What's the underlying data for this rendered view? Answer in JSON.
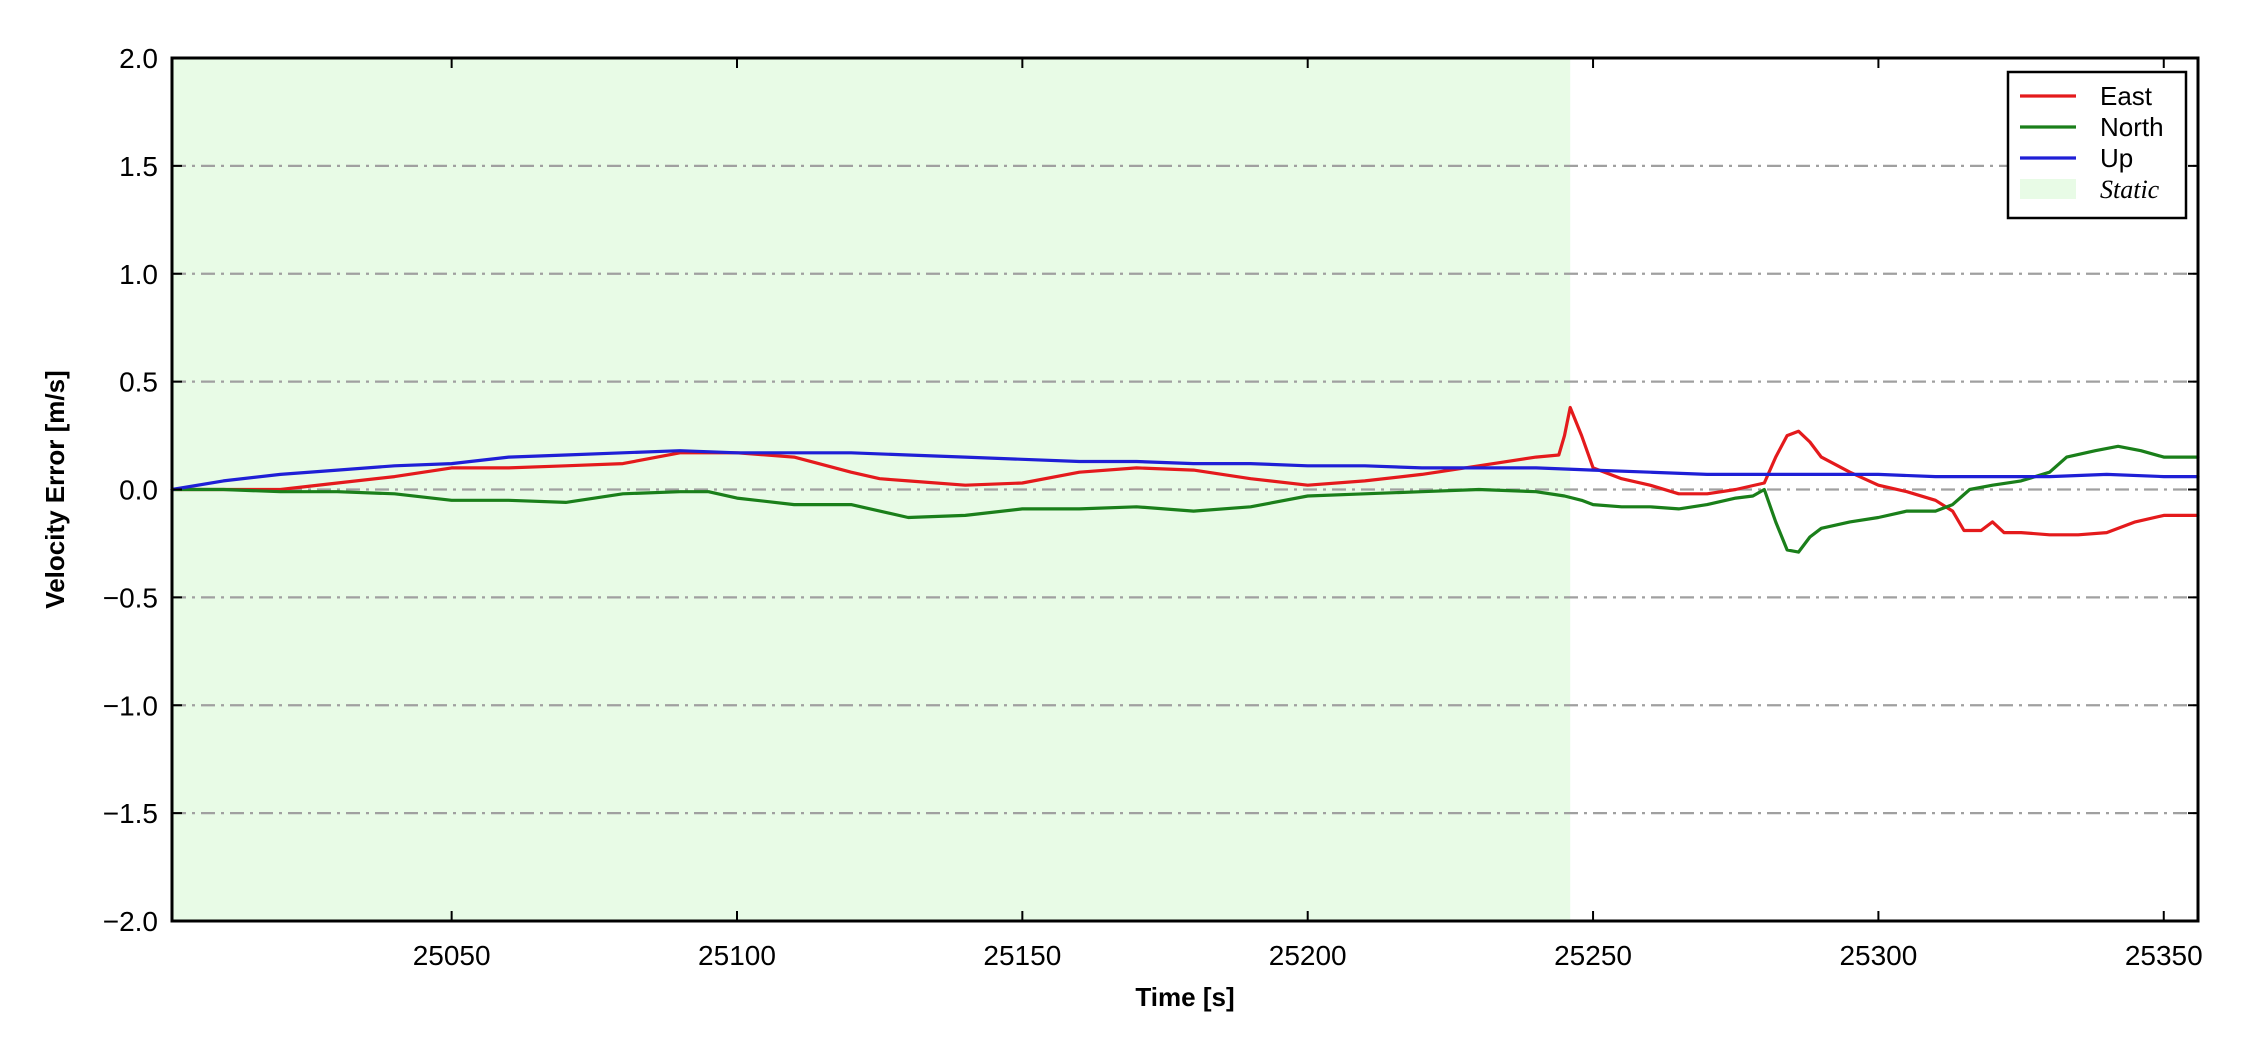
{
  "chart_data": {
    "type": "line",
    "title": "",
    "xlabel": "Time [s]",
    "ylabel": "Velocity Error [m/s]",
    "xlim": [
      25001,
      25356
    ],
    "ylim": [
      -2.0,
      2.0
    ],
    "x_ticks": [
      25050,
      25100,
      25150,
      25200,
      25250,
      25300,
      25350
    ],
    "x_tick_labels": [
      "25050",
      "25100",
      "25150",
      "25200",
      "25250",
      "25300",
      "25350"
    ],
    "y_ticks": [
      -2.0,
      -1.5,
      -1.0,
      -0.5,
      0.0,
      0.5,
      1.0,
      1.5,
      2.0
    ],
    "y_tick_labels": [
      "−2.0",
      "−1.5",
      "−1.0",
      "−0.5",
      "0.0",
      "0.5",
      "1.0",
      "1.5",
      "2.0"
    ],
    "grid": {
      "y": true,
      "x": false,
      "style": "dash-dot",
      "color": "#a0a0a0"
    },
    "legend_position": "top-right",
    "shaded_region": {
      "label": "Static",
      "x": [
        25001,
        25246
      ],
      "color": "#e8fbe6"
    },
    "series": [
      {
        "name": "East",
        "color": "#e41a1c",
        "x": [
          25001,
          25010,
          25020,
          25030,
          25040,
          25050,
          25060,
          25070,
          25080,
          25090,
          25100,
          25110,
          25120,
          25125,
          25130,
          25140,
          25150,
          25160,
          25170,
          25180,
          25190,
          25200,
          25210,
          25220,
          25230,
          25240,
          25244,
          25245,
          25246,
          25248,
          25250,
          25255,
          25260,
          25265,
          25270,
          25275,
          25280,
          25282,
          25284,
          25286,
          25288,
          25290,
          25295,
          25300,
          25305,
          25310,
          25313,
          25315,
          25318,
          25320,
          25322,
          25325,
          25330,
          25335,
          25340,
          25345,
          25350,
          25356
        ],
        "y": [
          0.0,
          0.0,
          0.0,
          0.03,
          0.06,
          0.1,
          0.1,
          0.11,
          0.12,
          0.17,
          0.17,
          0.15,
          0.08,
          0.05,
          0.04,
          0.02,
          0.03,
          0.08,
          0.1,
          0.09,
          0.05,
          0.02,
          0.04,
          0.07,
          0.11,
          0.15,
          0.16,
          0.25,
          0.38,
          0.25,
          0.1,
          0.05,
          0.02,
          -0.02,
          -0.02,
          0.0,
          0.03,
          0.15,
          0.25,
          0.27,
          0.22,
          0.15,
          0.08,
          0.02,
          -0.01,
          -0.05,
          -0.1,
          -0.19,
          -0.19,
          -0.15,
          -0.2,
          -0.2,
          -0.21,
          -0.21,
          -0.2,
          -0.15,
          -0.12,
          -0.12
        ]
      },
      {
        "name": "North",
        "color": "#1a7f1a",
        "x": [
          25001,
          25010,
          25020,
          25030,
          25040,
          25050,
          25060,
          25070,
          25080,
          25090,
          25095,
          25100,
          25110,
          25120,
          25130,
          25140,
          25150,
          25160,
          25170,
          25180,
          25190,
          25200,
          25210,
          25220,
          25230,
          25240,
          25245,
          25248,
          25250,
          25255,
          25260,
          25265,
          25270,
          25275,
          25278,
          25280,
          25282,
          25284,
          25286,
          25288,
          25290,
          25295,
          25300,
          25305,
          25310,
          25313,
          25316,
          25320,
          25325,
          25330,
          25333,
          25338,
          25342,
          25346,
          25350,
          25356
        ],
        "y": [
          0.0,
          0.0,
          -0.01,
          -0.01,
          -0.02,
          -0.05,
          -0.05,
          -0.06,
          -0.02,
          -0.01,
          -0.01,
          -0.04,
          -0.07,
          -0.07,
          -0.13,
          -0.12,
          -0.09,
          -0.09,
          -0.08,
          -0.1,
          -0.08,
          -0.03,
          -0.02,
          -0.01,
          0.0,
          -0.01,
          -0.03,
          -0.05,
          -0.07,
          -0.08,
          -0.08,
          -0.09,
          -0.07,
          -0.04,
          -0.03,
          0.0,
          -0.15,
          -0.28,
          -0.29,
          -0.22,
          -0.18,
          -0.15,
          -0.13,
          -0.1,
          -0.1,
          -0.07,
          0.0,
          0.02,
          0.04,
          0.08,
          0.15,
          0.18,
          0.2,
          0.18,
          0.15,
          0.15
        ]
      },
      {
        "name": "Up",
        "color": "#1f1fd6",
        "x": [
          25001,
          25010,
          25020,
          25030,
          25040,
          25050,
          25060,
          25070,
          25080,
          25090,
          25100,
          25110,
          25120,
          25130,
          25140,
          25150,
          25160,
          25170,
          25180,
          25190,
          25200,
          25210,
          25220,
          25230,
          25240,
          25250,
          25260,
          25270,
          25280,
          25290,
          25300,
          25310,
          25320,
          25330,
          25340,
          25350,
          25356
        ],
        "y": [
          0.0,
          0.04,
          0.07,
          0.09,
          0.11,
          0.12,
          0.15,
          0.16,
          0.17,
          0.18,
          0.17,
          0.17,
          0.17,
          0.16,
          0.15,
          0.14,
          0.13,
          0.13,
          0.12,
          0.12,
          0.11,
          0.11,
          0.1,
          0.1,
          0.1,
          0.09,
          0.08,
          0.07,
          0.07,
          0.07,
          0.07,
          0.06,
          0.06,
          0.06,
          0.07,
          0.06,
          0.06
        ]
      }
    ]
  }
}
